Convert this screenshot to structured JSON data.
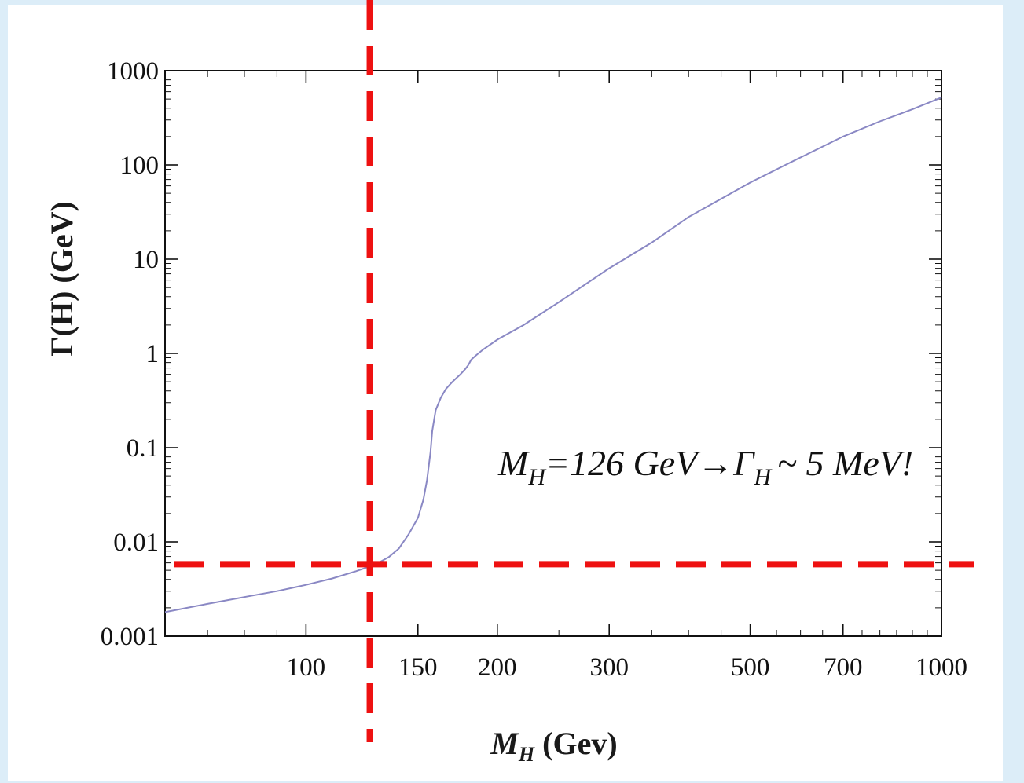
{
  "chart_data": {
    "type": "line",
    "title": "",
    "xlabel": {
      "main": "M",
      "sub": "H",
      "rest": " (Gev)"
    },
    "ylabel": "Γ(H)   (GeV)",
    "x_scale": "log",
    "y_scale": "log",
    "xlim": [
      60,
      1000
    ],
    "ylim": [
      0.001,
      1000
    ],
    "x_ticks": [
      {
        "value": 100,
        "label": "100"
      },
      {
        "value": 150,
        "label": "150"
      },
      {
        "value": 200,
        "label": "200"
      },
      {
        "value": 300,
        "label": "300"
      },
      {
        "value": 500,
        "label": "500"
      },
      {
        "value": 700,
        "label": "700"
      },
      {
        "value": 1000,
        "label": "1000"
      }
    ],
    "y_ticks": [
      {
        "value": 0.001,
        "label": "0.001"
      },
      {
        "value": 0.01,
        "label": "0.01"
      },
      {
        "value": 0.1,
        "label": "0.1"
      },
      {
        "value": 1,
        "label": "1"
      },
      {
        "value": 10,
        "label": "10"
      },
      {
        "value": 100,
        "label": "100"
      },
      {
        "value": 1000,
        "label": "1000"
      }
    ],
    "grid": false,
    "series": [
      {
        "color": "#8a88c4",
        "x": [
          60,
          70,
          80,
          90,
          100,
          110,
          120,
          126,
          130,
          135,
          140,
          145,
          150,
          153,
          155,
          157,
          158,
          160,
          163,
          166,
          170,
          175,
          178,
          180,
          182,
          185,
          190,
          200,
          220,
          250,
          300,
          350,
          400,
          500,
          600,
          700,
          800,
          900,
          1000
        ],
        "y": [
          0.0018,
          0.0022,
          0.0026,
          0.003,
          0.0035,
          0.0041,
          0.0049,
          0.0055,
          0.006,
          0.0069,
          0.0085,
          0.012,
          0.018,
          0.028,
          0.045,
          0.09,
          0.15,
          0.25,
          0.34,
          0.42,
          0.5,
          0.6,
          0.68,
          0.75,
          0.86,
          0.95,
          1.1,
          1.4,
          2.0,
          3.5,
          8.0,
          15.0,
          28.0,
          65.0,
          120.0,
          200.0,
          290.0,
          390.0,
          520.0
        ]
      }
    ],
    "annotation": {
      "parts": [
        {
          "text": "M",
          "sub": "H"
        },
        {
          "text": "=126 GeV→Γ",
          "sub": "H"
        },
        {
          "text": "~ 5 MeV!"
        }
      ]
    },
    "reference_lines": {
      "color": "#ee1111",
      "vertical_x": 126,
      "horizontal_y": 0.0058
    }
  }
}
